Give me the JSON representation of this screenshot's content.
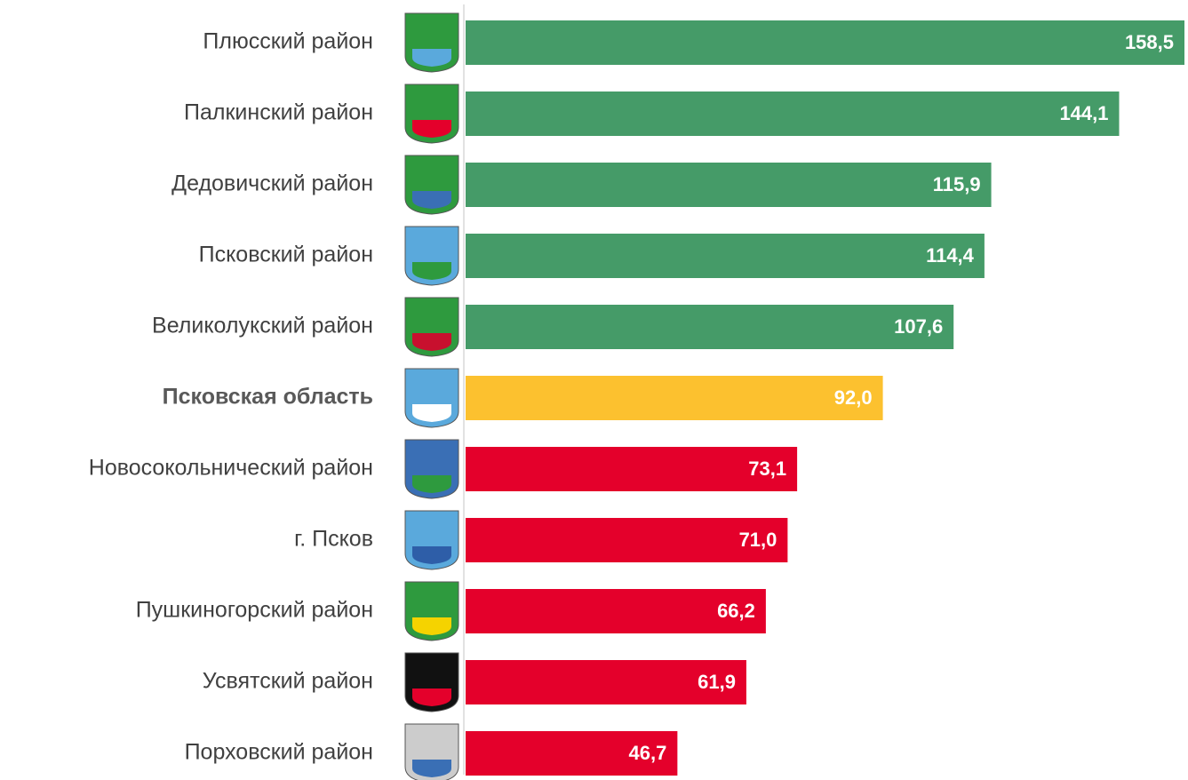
{
  "chart_data": {
    "type": "bar",
    "orientation": "horizontal",
    "categories": [
      "Плюсский район",
      "Палкинский район",
      "Дедовичский район",
      "Псковский район",
      "Великолукский район",
      "Псковская область",
      "Новосокольнический район",
      "г. Псков",
      "Пушкиногорский район",
      "Усвятский район",
      "Порховский район"
    ],
    "values": [
      158.5,
      144.1,
      115.9,
      114.4,
      107.6,
      92.0,
      73.1,
      71.0,
      66.2,
      61.9,
      46.7
    ],
    "value_labels": [
      "158,5",
      "144,1",
      "115,9",
      "114,4",
      "107,6",
      "92,0",
      "73,1",
      "71,0",
      "66,2",
      "61,9",
      "46,7"
    ],
    "colors": [
      "#459b68",
      "#459b68",
      "#459b68",
      "#459b68",
      "#459b68",
      "#fcc12f",
      "#e4002b",
      "#e4002b",
      "#e4002b",
      "#e4002b",
      "#e4002b"
    ],
    "bold_categories": [
      5
    ]
  }
}
